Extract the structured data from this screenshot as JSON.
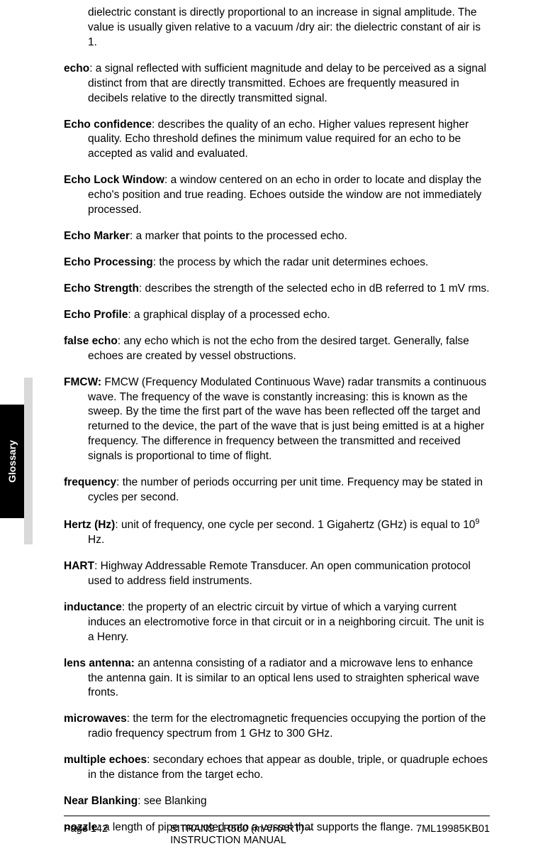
{
  "tab_label": "Glossary",
  "first_entry": "dielectric constant is directly proportional to an increase in signal amplitude. The value is usually given relative to a vacuum /dry air: the dielectric constant of air is 1.",
  "entries": [
    {
      "term": "echo",
      "def": ": a signal reflected with sufficient magnitude and delay to be perceived as a signal distinct from that are directly transmitted. Echoes are frequently measured in decibels relative to the directly transmitted signal."
    },
    {
      "term": "Echo confidence",
      "def": ": describes the quality of an echo. Higher values represent higher quality. Echo threshold defines the minimum value required for an echo to be accepted as valid and evaluated."
    },
    {
      "term": "Echo Lock Window",
      "def": ": a window centered on an echo in order to locate and display the echo's position and true reading. Echoes outside the window are not immediately processed."
    },
    {
      "term": "Echo Marker",
      "def": ": a marker that points to the processed echo."
    },
    {
      "term": "Echo Processing",
      "def": ": the process by which the radar unit determines echoes."
    },
    {
      "term": "Echo Strength",
      "def": ": describes the strength of the selected echo in dB referred to 1 mV rms."
    },
    {
      "term": "Echo Profile",
      "def": ": a graphical display of a processed echo."
    },
    {
      "term": "false echo",
      "def": ": any echo which is not the echo from the desired target. Generally, false echoes are created by vessel obstructions."
    },
    {
      "term": "FMCW:",
      "def": " FMCW (Frequency Modulated Continuous Wave) radar transmits a continuous wave. The frequency of the wave is constantly increasing: this is known as the sweep. By the time the first part of the wave has been reflected off the target and returned to the device, the part of the wave that is just being emitted is at a higher frequency. The difference in frequency between the transmitted and received signals is proportional to time of flight."
    },
    {
      "term": "frequency",
      "def": ": the number of periods occurring per unit time. Frequency may be stated in cycles per second."
    },
    {
      "term": "Hertz (Hz)",
      "def": ": unit of frequency, one cycle per second. 1 Gigahertz (GHz) is equal to 10",
      "sup": "9",
      "def2": " Hz."
    },
    {
      "term": "HART",
      "def": ": Highway Addressable Remote Transducer. An open communication protocol used to address field instruments."
    },
    {
      "term": "inductance",
      "def": ": the property of an electric circuit by virtue of which a varying current induces an electromotive force in that circuit or in a neighboring circuit. The unit is a Henry."
    },
    {
      "term": "lens antenna:",
      "def": " an antenna consisting of a radiator and a microwave lens to enhance the antenna gain. It is similar to an optical lens used to straighten spherical wave fronts."
    },
    {
      "term": "microwaves",
      "def": ": the term for the electromagnetic frequencies occupying the portion of the radio frequency spectrum from 1 GHz to 300 GHz."
    },
    {
      "term": "multiple echoes",
      "def": ": secondary echoes that appear as double, triple, or quadruple echoes in the distance from the target echo."
    },
    {
      "term": "Near Blanking",
      "def": ": see Blanking"
    },
    {
      "term": "nozzle",
      "def": ": a length of pipe mounted onto a vessel that supports the flange."
    }
  ],
  "footer": {
    "left": "Page 142",
    "center": "SITRANS LR560 (mA/HART) – INSTRUCTION MANUAL",
    "right": "7ML19985KB01"
  }
}
